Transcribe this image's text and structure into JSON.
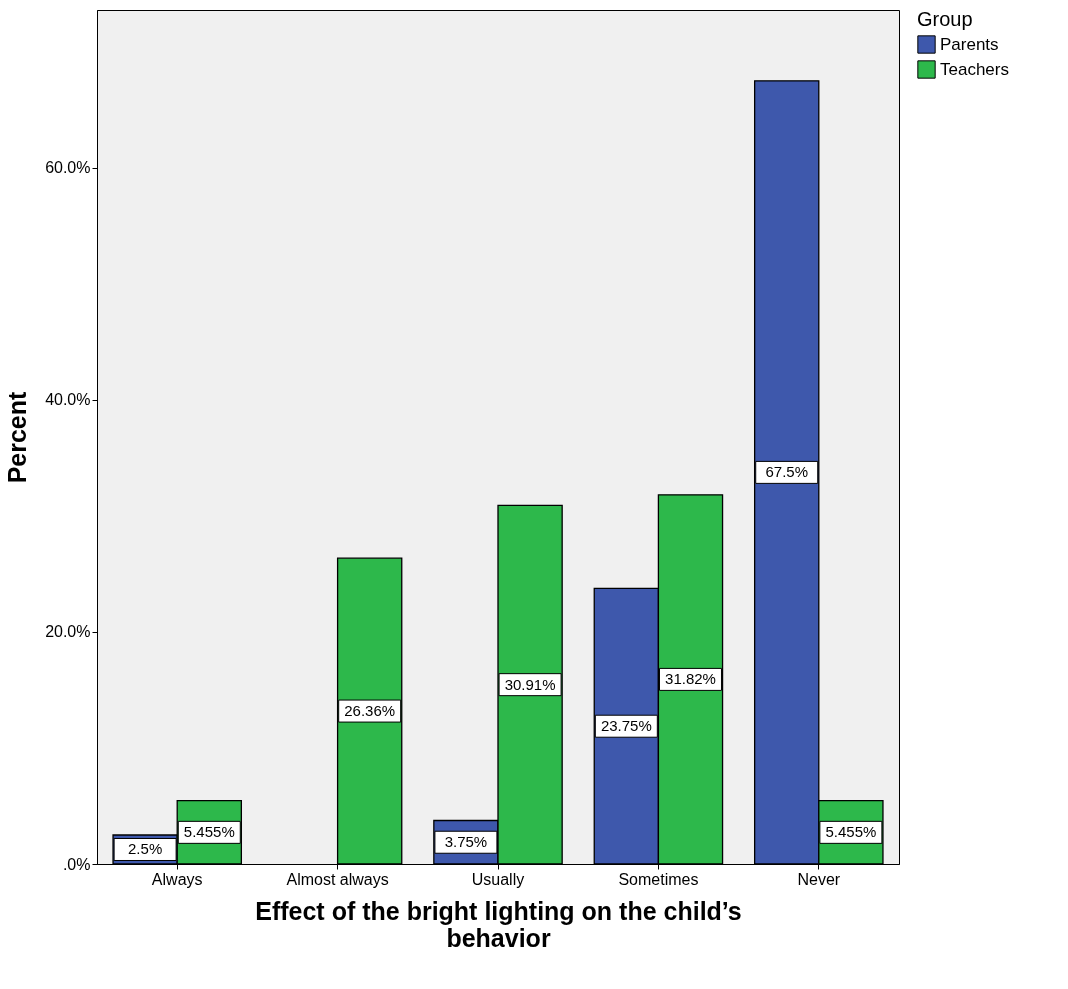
{
  "chart_data": {
    "type": "bar",
    "xlabel": "Effect of the bright lighting on the child’s behavior",
    "ylabel": "Percent",
    "legend_title": "Group",
    "categories": [
      "Always",
      "Almost always",
      "Usually",
      "Sometimes",
      "Never"
    ],
    "series": [
      {
        "name": "Parents",
        "color": "#3e58ac",
        "values": [
          2.5,
          null,
          3.75,
          23.75,
          67.5
        ],
        "value_labels": [
          "2.5%",
          null,
          "3.75%",
          "23.75%",
          "67.5%"
        ]
      },
      {
        "name": "Teachers",
        "color": "#2db84b",
        "values": [
          5.455,
          26.36,
          30.91,
          31.82,
          5.455
        ],
        "value_labels": [
          "5.455%",
          "26.36%",
          "30.91%",
          "31.82%",
          "5.455%"
        ]
      }
    ],
    "ylim": [
      0,
      73.6
    ],
    "yticks": [
      {
        "value": 0,
        "label": ".0%"
      },
      {
        "value": 20,
        "label": "20.0%"
      },
      {
        "value": 40,
        "label": "40.0%"
      },
      {
        "value": 60,
        "label": "60.0%"
      }
    ],
    "grid": false,
    "legend": "top right"
  }
}
